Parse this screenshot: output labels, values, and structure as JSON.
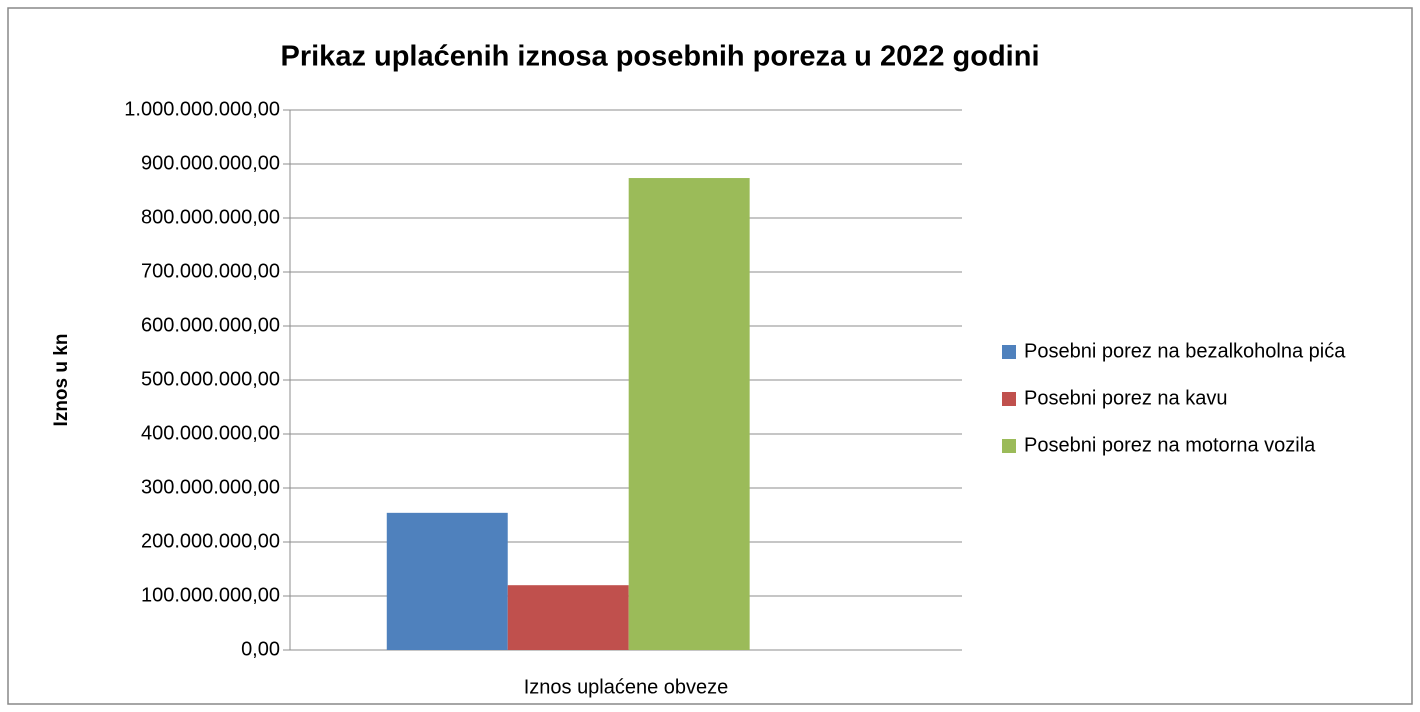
{
  "chart_data": {
    "type": "bar",
    "title": "Prikaz uplaćenih iznosa posebnih poreza u 2022 godini",
    "y_label": "Iznos u kn",
    "categories": [
      "Iznos uplaćene obveze"
    ],
    "series": [
      {
        "name": "Posebni porez na bezalkoholna pića",
        "color": "#4f81bd",
        "values": [
          254000000
        ]
      },
      {
        "name": "Posebni porez na kavu",
        "color": "#c0504d",
        "values": [
          120000000
        ]
      },
      {
        "name": "Posebni porez na motorna vozila",
        "color": "#9bbb59",
        "values": [
          874000000
        ]
      }
    ],
    "ylim": [
      0,
      1000000000
    ],
    "yticks": [
      {
        "value": 0,
        "label": "0,00"
      },
      {
        "value": 100000000,
        "label": "100.000.000,00"
      },
      {
        "value": 200000000,
        "label": "200.000.000,00"
      },
      {
        "value": 300000000,
        "label": "300.000.000,00"
      },
      {
        "value": 400000000,
        "label": "400.000.000,00"
      },
      {
        "value": 500000000,
        "label": "500.000.000,00"
      },
      {
        "value": 600000000,
        "label": "600.000.000,00"
      },
      {
        "value": 700000000,
        "label": "700.000.000,00"
      },
      {
        "value": 800000000,
        "label": "800.000.000,00"
      },
      {
        "value": 900000000,
        "label": "900.000.000,00"
      },
      {
        "value": 1000000000,
        "label": "1.000.000.000,00"
      }
    ],
    "grid": true,
    "legend": "right"
  }
}
